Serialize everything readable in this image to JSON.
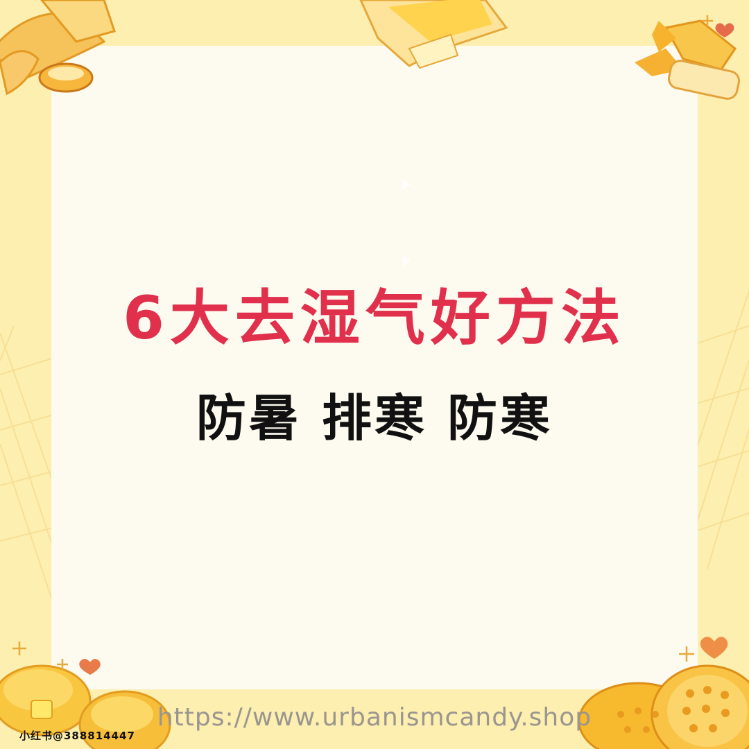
{
  "title": "6大去湿气好方法",
  "subtitle": "防暑 排寒 防寒",
  "website": "https://www.urbanismcandy.shop",
  "watermark": "小红书@388814447",
  "colors": {
    "background": "#FCEFB0",
    "panel": "#FDFAF0",
    "title": "#E0304B",
    "subtitle": "#111111",
    "url": "#9A9590",
    "accent": "#F5B82A"
  },
  "decorations": [
    "pastry-icon",
    "toast-icon",
    "candy-icon",
    "pancake-stack-icon",
    "waffle-icon",
    "heart-icon",
    "sparkle-icon",
    "grid-pattern"
  ]
}
